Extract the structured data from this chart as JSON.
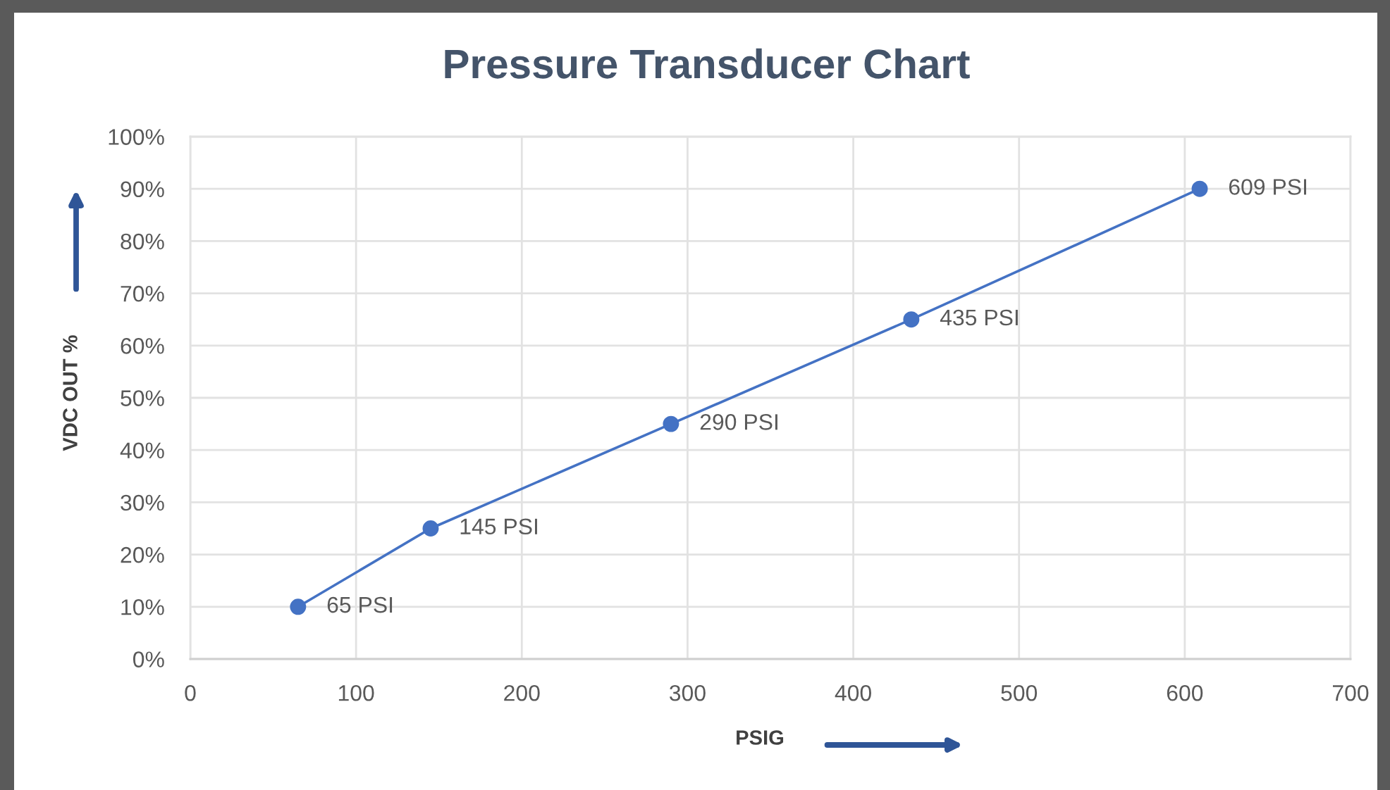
{
  "chart_data": {
    "type": "line",
    "title": "Pressure Transducer Chart",
    "xlabel": "PSIG",
    "ylabel": "VDC OUT %",
    "x": [
      65,
      145,
      290,
      435,
      609
    ],
    "series": [
      {
        "color": "#4472c4",
        "values": [
          10,
          25,
          45,
          65,
          90
        ]
      }
    ],
    "marker": "circle",
    "line_style": "solid",
    "grid": true,
    "xlim": [
      0,
      700
    ],
    "xticks": [
      0,
      100,
      200,
      300,
      400,
      500,
      600,
      700
    ],
    "ylim": [
      0,
      100
    ],
    "yticks": [
      {
        "value": 0,
        "label": "0%"
      },
      {
        "value": 10,
        "label": "10%"
      },
      {
        "value": 20,
        "label": "20%"
      },
      {
        "value": 30,
        "label": "30%"
      },
      {
        "value": 40,
        "label": "40%"
      },
      {
        "value": 50,
        "label": "50%"
      },
      {
        "value": 60,
        "label": "60%"
      },
      {
        "value": 70,
        "label": "70%"
      },
      {
        "value": 80,
        "label": "80%"
      },
      {
        "value": 90,
        "label": "90%"
      },
      {
        "value": 100,
        "label": "100%"
      }
    ],
    "annotations": [
      {
        "text": "65 PSI",
        "x": 65,
        "y": 10
      },
      {
        "text": "145 PSI",
        "x": 145,
        "y": 25
      },
      {
        "text": "290 PSI",
        "x": 290,
        "y": 45
      },
      {
        "text": "435 PSI",
        "x": 435,
        "y": 65
      },
      {
        "text": "609 PSI",
        "x": 609,
        "y": 90
      }
    ]
  }
}
